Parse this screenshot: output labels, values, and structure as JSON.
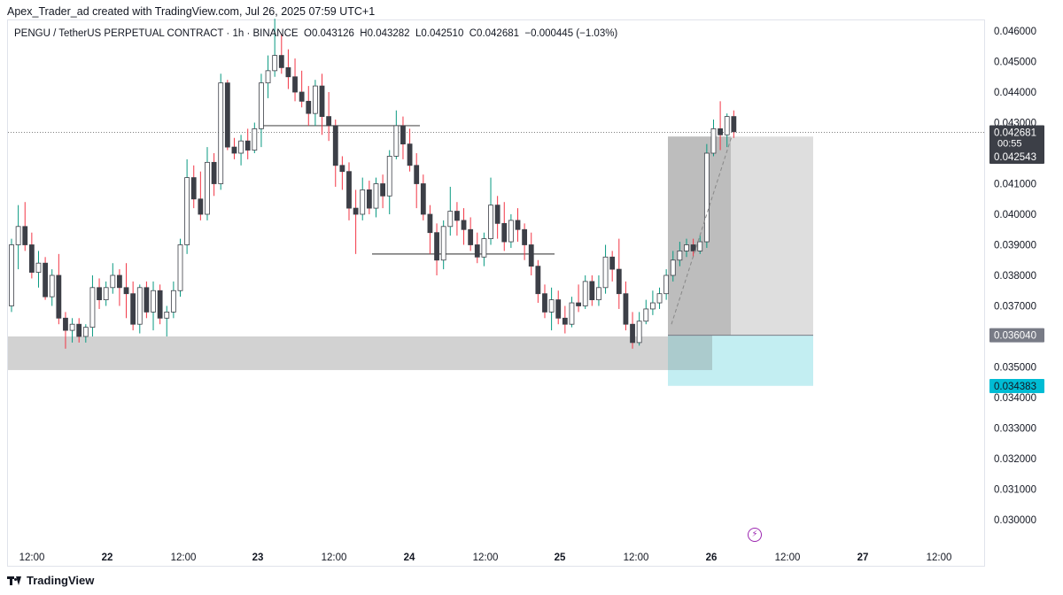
{
  "header": {
    "watermark": "Apex_Trader_ad created with TradingView.com, Jul 26, 2025 07:59 UTC+1"
  },
  "legend": {
    "symbol": "PENGU / TetherUS PERPETUAL CONTRACT · 1h · BINANCE",
    "open_label": "O",
    "open": "0.043126",
    "high_label": "H",
    "high": "0.043282",
    "low_label": "L",
    "low": "0.042510",
    "close_label": "C",
    "close": "0.042681",
    "change": "−0.000445 (−1.03%)"
  },
  "footer": {
    "brand": "TradingView"
  },
  "icons": {
    "footer_logo": "tradingview-logo-icon",
    "alert": "lightning-icon"
  },
  "colors": {
    "up": "#089981",
    "down": "#f23645",
    "candle_body_up": "#ffffff",
    "candle_body_down": "#3c3f47",
    "support_zone": "#d0d0d0",
    "target_zone": "#c3eef2",
    "stop_label": "#00bcd4",
    "entry_label": "#787b86"
  },
  "chart_data": {
    "type": "candlestick",
    "symbol": "PENGU / TetherUS PERPETUAL CONTRACT",
    "interval": "1h",
    "exchange": "BINANCE",
    "ylim": [
      0.0295,
      0.0465
    ],
    "y_ticks": [
      "0.046000",
      "0.045000",
      "0.044000",
      "0.043000",
      "0.041000",
      "0.040000",
      "0.039000",
      "0.038000",
      "0.037000",
      "0.035000",
      "0.034000",
      "0.033000",
      "0.032000",
      "0.031000",
      "0.030000"
    ],
    "x_ticks": [
      "12:00",
      "22",
      "12:00",
      "23",
      "12:00",
      "24",
      "12:00",
      "25",
      "12:00",
      "26",
      "12:00",
      "27",
      "12:00"
    ],
    "current_price": "0.042681",
    "countdown": "00:55",
    "price_labels": [
      "0.042543",
      "0.036040",
      "0.034383"
    ],
    "support_zone": [
      0.0349,
      0.036
    ],
    "position": {
      "entry": 0.03604,
      "target": 0.042543,
      "stop": 0.034383
    },
    "levels": [
      0.0429,
      0.0387
    ],
    "candles": [
      [
        0.037,
        0.0392,
        0.0368,
        0.039
      ],
      [
        0.039,
        0.0403,
        0.0382,
        0.0396
      ],
      [
        0.0396,
        0.0404,
        0.0388,
        0.039
      ],
      [
        0.039,
        0.0394,
        0.0379,
        0.0381
      ],
      [
        0.0381,
        0.0388,
        0.0376,
        0.0384
      ],
      [
        0.0384,
        0.0386,
        0.0372,
        0.0373
      ],
      [
        0.0373,
        0.0382,
        0.037,
        0.038
      ],
      [
        0.038,
        0.0387,
        0.0364,
        0.0366
      ],
      [
        0.0366,
        0.0368,
        0.0356,
        0.0362
      ],
      [
        0.0362,
        0.0366,
        0.0358,
        0.0364
      ],
      [
        0.0364,
        0.0366,
        0.0358,
        0.036
      ],
      [
        0.036,
        0.0364,
        0.0358,
        0.0363
      ],
      [
        0.0363,
        0.038,
        0.036,
        0.0376
      ],
      [
        0.0376,
        0.0379,
        0.0369,
        0.0372
      ],
      [
        0.0372,
        0.0378,
        0.037,
        0.0376
      ],
      [
        0.0376,
        0.0384,
        0.0374,
        0.038
      ],
      [
        0.038,
        0.0382,
        0.037,
        0.0376
      ],
      [
        0.0376,
        0.0384,
        0.0366,
        0.0374
      ],
      [
        0.0374,
        0.0378,
        0.0362,
        0.0364
      ],
      [
        0.0364,
        0.0377,
        0.0361,
        0.0376
      ],
      [
        0.0376,
        0.0378,
        0.0366,
        0.0368
      ],
      [
        0.0368,
        0.0378,
        0.0362,
        0.0375
      ],
      [
        0.0375,
        0.0377,
        0.0364,
        0.0366
      ],
      [
        0.0366,
        0.037,
        0.036,
        0.0368
      ],
      [
        0.0368,
        0.0378,
        0.0366,
        0.0375
      ],
      [
        0.0375,
        0.0392,
        0.0373,
        0.039
      ],
      [
        0.039,
        0.0418,
        0.0387,
        0.0412
      ],
      [
        0.0412,
        0.0416,
        0.0402,
        0.0405
      ],
      [
        0.0405,
        0.0414,
        0.0398,
        0.04
      ],
      [
        0.04,
        0.0422,
        0.0398,
        0.0417
      ],
      [
        0.0417,
        0.042,
        0.0406,
        0.041
      ],
      [
        0.041,
        0.0446,
        0.0408,
        0.0443
      ],
      [
        0.0443,
        0.0444,
        0.0421,
        0.0422
      ],
      [
        0.0422,
        0.0425,
        0.0418,
        0.042
      ],
      [
        0.042,
        0.0426,
        0.0416,
        0.0424
      ],
      [
        0.0424,
        0.0428,
        0.0418,
        0.0421
      ],
      [
        0.0421,
        0.043,
        0.042,
        0.0428
      ],
      [
        0.0428,
        0.0446,
        0.0422,
        0.0443
      ],
      [
        0.0443,
        0.0452,
        0.0438,
        0.0447
      ],
      [
        0.0447,
        0.0464,
        0.0445,
        0.0452
      ],
      [
        0.0452,
        0.0459,
        0.0446,
        0.0448
      ],
      [
        0.0448,
        0.0454,
        0.0441,
        0.0445
      ],
      [
        0.0445,
        0.0451,
        0.0437,
        0.044
      ],
      [
        0.044,
        0.0447,
        0.0435,
        0.0437
      ],
      [
        0.0437,
        0.0442,
        0.0429,
        0.0433
      ],
      [
        0.0433,
        0.0444,
        0.0429,
        0.0442
      ],
      [
        0.0442,
        0.0446,
        0.0426,
        0.0432
      ],
      [
        0.0432,
        0.044,
        0.0424,
        0.0429
      ],
      [
        0.0429,
        0.0431,
        0.0409,
        0.0416
      ],
      [
        0.0416,
        0.0419,
        0.0408,
        0.0414
      ],
      [
        0.0414,
        0.0417,
        0.0398,
        0.0402
      ],
      [
        0.0402,
        0.0408,
        0.0387,
        0.04
      ],
      [
        0.04,
        0.0412,
        0.0398,
        0.0408
      ],
      [
        0.0408,
        0.0411,
        0.04,
        0.0402
      ],
      [
        0.0402,
        0.0412,
        0.0399,
        0.041
      ],
      [
        0.041,
        0.0413,
        0.0402,
        0.0406
      ],
      [
        0.0406,
        0.0421,
        0.04,
        0.0419
      ],
      [
        0.0419,
        0.0434,
        0.0418,
        0.0429
      ],
      [
        0.0429,
        0.0432,
        0.0418,
        0.0423
      ],
      [
        0.0423,
        0.0428,
        0.0414,
        0.0416
      ],
      [
        0.0416,
        0.042,
        0.0402,
        0.041
      ],
      [
        0.041,
        0.0413,
        0.0398,
        0.04
      ],
      [
        0.04,
        0.0403,
        0.0387,
        0.0394
      ],
      [
        0.0394,
        0.0397,
        0.038,
        0.0385
      ],
      [
        0.0385,
        0.0398,
        0.0382,
        0.0396
      ],
      [
        0.0396,
        0.0409,
        0.0393,
        0.0401
      ],
      [
        0.0401,
        0.0404,
        0.0393,
        0.0398
      ],
      [
        0.0398,
        0.0402,
        0.039,
        0.0395
      ],
      [
        0.0395,
        0.0399,
        0.0388,
        0.039
      ],
      [
        0.039,
        0.0394,
        0.0384,
        0.0386
      ],
      [
        0.0386,
        0.0394,
        0.0383,
        0.0392
      ],
      [
        0.0392,
        0.0412,
        0.039,
        0.0403
      ],
      [
        0.0403,
        0.0406,
        0.0392,
        0.0397
      ],
      [
        0.0397,
        0.0404,
        0.0388,
        0.0391
      ],
      [
        0.0391,
        0.04,
        0.0389,
        0.0398
      ],
      [
        0.0398,
        0.0402,
        0.0391,
        0.0395
      ],
      [
        0.0395,
        0.0397,
        0.0385,
        0.039
      ],
      [
        0.039,
        0.0394,
        0.038,
        0.0383
      ],
      [
        0.0383,
        0.0385,
        0.0371,
        0.0374
      ],
      [
        0.0374,
        0.0377,
        0.0366,
        0.0368
      ],
      [
        0.0368,
        0.0376,
        0.0362,
        0.0372
      ],
      [
        0.0372,
        0.0375,
        0.0364,
        0.0366
      ],
      [
        0.0366,
        0.037,
        0.0361,
        0.0364
      ],
      [
        0.0364,
        0.0373,
        0.0363,
        0.0371
      ],
      [
        0.0371,
        0.0377,
        0.0368,
        0.037
      ],
      [
        0.037,
        0.038,
        0.0369,
        0.0378
      ],
      [
        0.0378,
        0.038,
        0.037,
        0.0372
      ],
      [
        0.0372,
        0.038,
        0.037,
        0.0376
      ],
      [
        0.0376,
        0.039,
        0.0374,
        0.0386
      ],
      [
        0.0386,
        0.0388,
        0.0378,
        0.0382
      ],
      [
        0.0382,
        0.0392,
        0.0369,
        0.0374
      ],
      [
        0.0374,
        0.0378,
        0.0362,
        0.0364
      ],
      [
        0.0364,
        0.0368,
        0.0356,
        0.0358
      ],
      [
        0.0358,
        0.0368,
        0.0357,
        0.0365
      ],
      [
        0.0365,
        0.0372,
        0.0364,
        0.0369
      ],
      [
        0.0369,
        0.0375,
        0.0367,
        0.0371
      ],
      [
        0.0371,
        0.0376,
        0.0369,
        0.0374
      ],
      [
        0.0374,
        0.0382,
        0.0372,
        0.038
      ],
      [
        0.038,
        0.0388,
        0.0378,
        0.0385
      ],
      [
        0.0385,
        0.0391,
        0.0383,
        0.0388
      ],
      [
        0.0388,
        0.0392,
        0.0386,
        0.039
      ],
      [
        0.039,
        0.0392,
        0.0386,
        0.0388
      ],
      [
        0.0388,
        0.0393,
        0.0387,
        0.0391
      ],
      [
        0.0391,
        0.0423,
        0.0389,
        0.042
      ],
      [
        0.042,
        0.0431,
        0.0419,
        0.0428
      ],
      [
        0.0428,
        0.0437,
        0.0421,
        0.0426
      ],
      [
        0.0426,
        0.0433,
        0.0422,
        0.0432
      ],
      [
        0.0432,
        0.0434,
        0.0425,
        0.0427
      ]
    ]
  }
}
